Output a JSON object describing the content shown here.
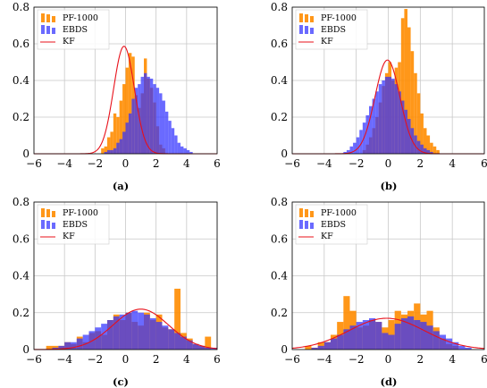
{
  "figure": {
    "captions": [
      "(a)",
      "(b)",
      "(c)",
      "(d)"
    ]
  },
  "legend_entries": [
    "PF-1000",
    "EBDS",
    "KF"
  ],
  "colors": {
    "pf1000": "#ff8c00",
    "ebds": "#3030ff",
    "kf": "#e8101a",
    "grid": "#c8c8c8"
  },
  "chart_data": [
    {
      "type": "histogram",
      "caption": "(a)",
      "xlim": [
        -6,
        6
      ],
      "ylim": [
        0,
        0.8
      ],
      "xticks": [
        "−6",
        "−4",
        "−2",
        "0",
        "2",
        "4",
        "6"
      ],
      "yticks": [
        "0",
        "0.2",
        "0.4",
        "0.6",
        "0.8"
      ],
      "grid": true,
      "legend": "top-left",
      "bin_width": 0.2,
      "series": [
        {
          "name": "PF-1000",
          "bin_start": -1.6,
          "values": [
            0.03,
            0.04,
            0.09,
            0.12,
            0.22,
            0.2,
            0.29,
            0.38,
            0.47,
            0.55,
            0.53,
            0.32,
            0.25,
            0.33,
            0.52,
            0.41,
            0.36,
            0.28,
            0.15,
            0.05,
            0.03
          ]
        },
        {
          "name": "EBDS",
          "bin_start": -1.4,
          "values": [
            0.01,
            0.02,
            0.02,
            0.03,
            0.06,
            0.08,
            0.12,
            0.17,
            0.22,
            0.3,
            0.36,
            0.38,
            0.42,
            0.44,
            0.42,
            0.41,
            0.38,
            0.36,
            0.33,
            0.29,
            0.23,
            0.18,
            0.14,
            0.1,
            0.06,
            0.04,
            0.03,
            0.02,
            0.01
          ]
        },
        {
          "name": "KF",
          "kind": "normal",
          "mean": -0.1,
          "std": 0.68
        }
      ]
    },
    {
      "type": "histogram",
      "caption": "(b)",
      "xlim": [
        -6,
        6
      ],
      "ylim": [
        0,
        0.8
      ],
      "xticks": [
        "−6",
        "−4",
        "−2",
        "0",
        "2",
        "4",
        "6"
      ],
      "yticks": [
        "0",
        "0.2",
        "0.4",
        "0.6",
        "0.8"
      ],
      "grid": true,
      "legend": "top-left",
      "bin_width": 0.2,
      "series": [
        {
          "name": "PF-1000",
          "bin_start": -1.6,
          "values": [
            0.02,
            0.05,
            0.09,
            0.14,
            0.2,
            0.28,
            0.37,
            0.44,
            0.5,
            0.4,
            0.47,
            0.5,
            0.74,
            0.79,
            0.69,
            0.56,
            0.44,
            0.33,
            0.22,
            0.14,
            0.1,
            0.06,
            0.04,
            0.02
          ]
        },
        {
          "name": "EBDS",
          "bin_start": -2.8,
          "values": [
            0.01,
            0.02,
            0.04,
            0.06,
            0.09,
            0.13,
            0.17,
            0.21,
            0.26,
            0.3,
            0.34,
            0.38,
            0.4,
            0.42,
            0.42,
            0.41,
            0.38,
            0.34,
            0.29,
            0.24,
            0.19,
            0.14,
            0.1,
            0.07,
            0.05,
            0.03,
            0.02,
            0.01
          ]
        },
        {
          "name": "KF",
          "kind": "normal",
          "mean": -0.05,
          "std": 0.78
        }
      ]
    },
    {
      "type": "histogram",
      "caption": "(c)",
      "xlim": [
        -6,
        6
      ],
      "ylim": [
        0,
        0.8
      ],
      "xticks": [
        "−6",
        "−4",
        "−2",
        "0",
        "2",
        "4",
        "6"
      ],
      "yticks": [
        "0",
        "0.2",
        "0.4",
        "0.6",
        "0.8"
      ],
      "grid": true,
      "legend": "top-left",
      "bin_width": 0.4,
      "series": [
        {
          "name": "PF-1000",
          "bin_start": -5.2,
          "values": [
            0.02,
            0.02,
            0.02,
            0.04,
            0.03,
            0.07,
            0.04,
            0.09,
            0.1,
            0.08,
            0.16,
            0.19,
            0.16,
            0.2,
            0.15,
            0.13,
            0.2,
            0.16,
            0.19,
            0.12,
            0.11,
            0.33,
            0.09,
            0.06,
            0.03,
            0.02,
            0.07
          ]
        },
        {
          "name": "EBDS",
          "bin_start": -4.8,
          "values": [
            0.01,
            0.02,
            0.04,
            0.04,
            0.06,
            0.08,
            0.1,
            0.12,
            0.14,
            0.16,
            0.18,
            0.19,
            0.2,
            0.21,
            0.2,
            0.19,
            0.17,
            0.15,
            0.13,
            0.11,
            0.09,
            0.07,
            0.05,
            0.03,
            0.02,
            0.01,
            0.01
          ]
        },
        {
          "name": "KF",
          "kind": "normal",
          "mean": 1.0,
          "std": 1.82
        }
      ]
    },
    {
      "type": "histogram",
      "caption": "(d)",
      "xlim": [
        -6,
        6
      ],
      "ylim": [
        0,
        0.8
      ],
      "xticks": [
        "−6",
        "−4",
        "−2",
        "0",
        "2",
        "4",
        "6"
      ],
      "yticks": [
        "0",
        "0.2",
        "0.4",
        "0.6",
        "0.8"
      ],
      "grid": true,
      "legend": "top-left",
      "bin_width": 0.4,
      "series": [
        {
          "name": "PF-1000",
          "bin_start": -5.2,
          "values": [
            0.02,
            0.01,
            0.04,
            0.04,
            0.08,
            0.15,
            0.29,
            0.21,
            0.12,
            0.13,
            0.16,
            0.15,
            0.12,
            0.16,
            0.21,
            0.19,
            0.21,
            0.25,
            0.19,
            0.21,
            0.12,
            0.06,
            0.03,
            0.02
          ]
        },
        {
          "name": "EBDS",
          "bin_start": -4.8,
          "values": [
            0.01,
            0.02,
            0.04,
            0.06,
            0.08,
            0.11,
            0.13,
            0.15,
            0.16,
            0.17,
            0.15,
            0.09,
            0.08,
            0.14,
            0.17,
            0.18,
            0.16,
            0.15,
            0.13,
            0.1,
            0.08,
            0.06,
            0.04,
            0.02,
            0.01
          ]
        },
        {
          "name": "KF",
          "kind": "normal",
          "mean": -0.1,
          "std": 2.35
        }
      ]
    }
  ]
}
